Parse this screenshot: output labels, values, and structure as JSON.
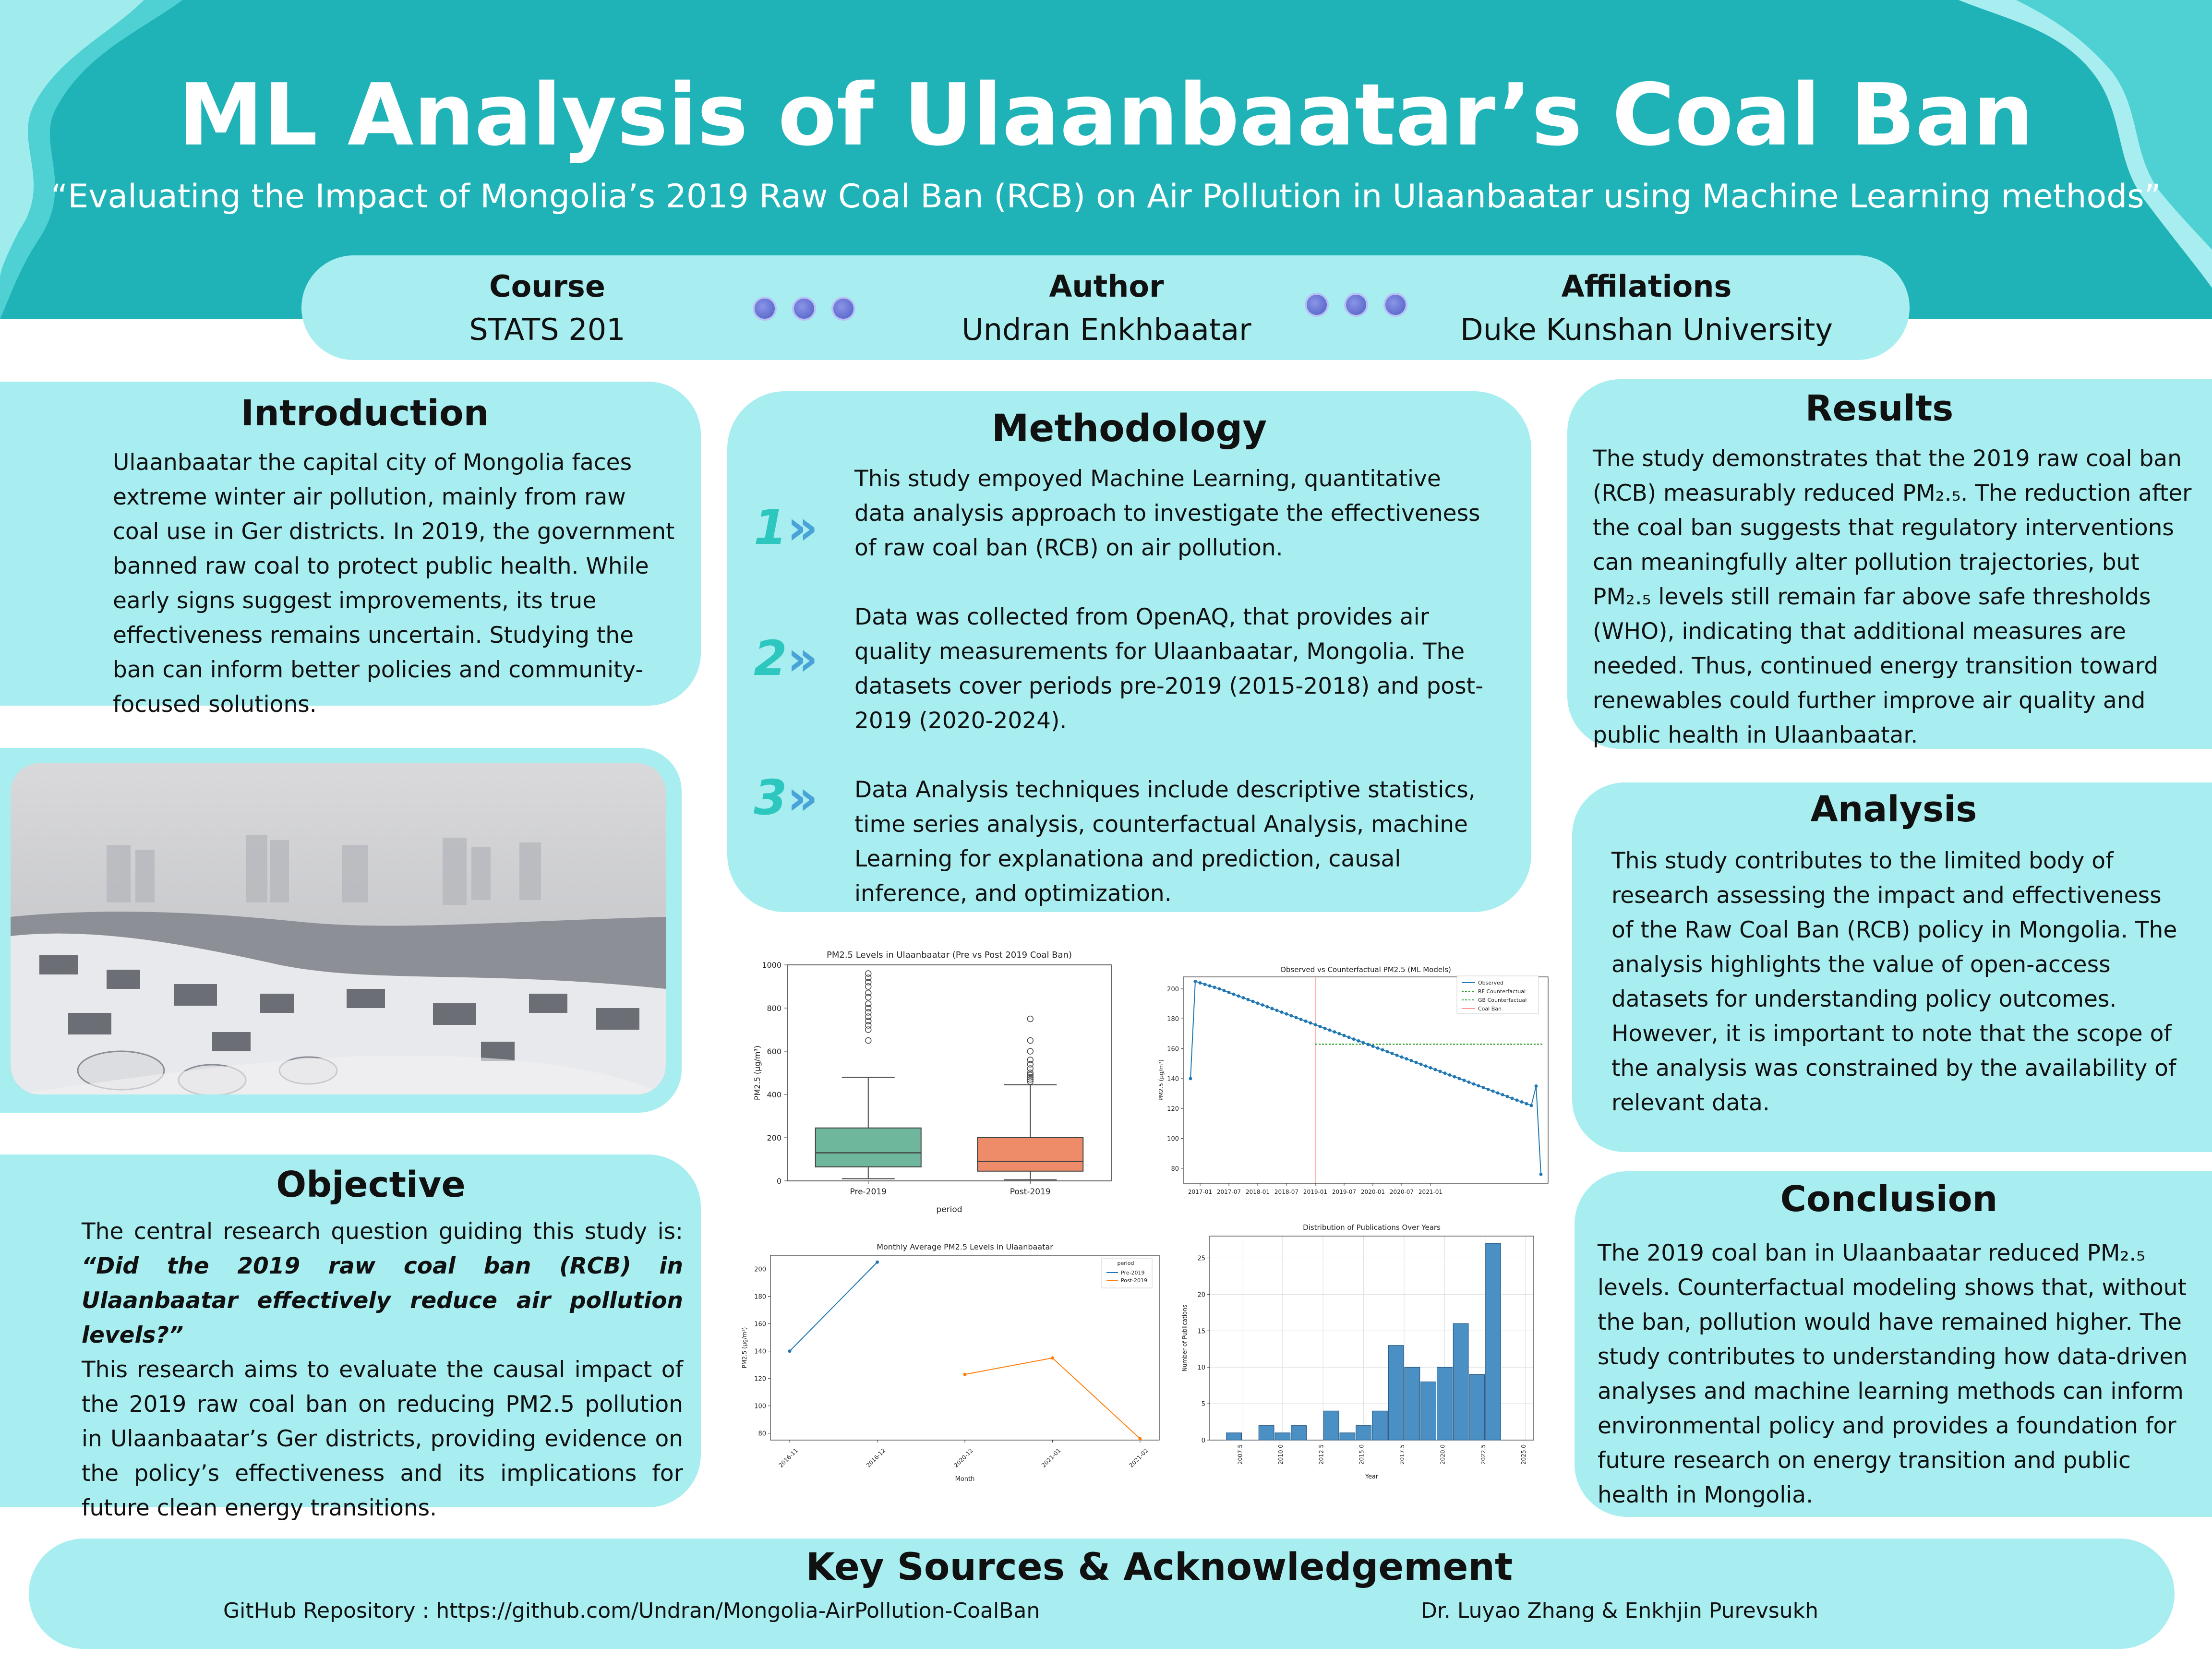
{
  "header": {
    "title": "ML Analysis of Ulaanbaatar’s Coal Ban",
    "subtitle": "“Evaluating the Impact of Mongolia’s 2019 Raw Coal Ban (RCB) on Air Pollution in Ulaanbaatar using Machine Learning methods”"
  },
  "info_bar": {
    "course_label": "Course",
    "course_value": "STATS 201",
    "author_label": "Author",
    "author_value": "Undran Enkhbaatar",
    "affiliation_label": "Affilations",
    "affiliation_value": "Duke Kunshan University"
  },
  "introduction": {
    "heading": "Introduction",
    "text": "Ulaanbaatar the capital city of Mongolia faces extreme winter air pollution, mainly from raw coal use in Ger districts. In 2019, the government banned raw coal to protect public health. While early signs suggest improvements, its true effectiveness remains uncertain. Studying the ban can inform better policies and community-focused solutions."
  },
  "objective": {
    "heading": "Objective",
    "lead": "The central research question guiding this study is: ",
    "question": "“Did the 2019 raw coal ban (RCB) in Ulaanbaatar effectively reduce air pollution levels?”",
    "text": "This research aims to evaluate the causal impact of the 2019 raw coal ban on reducing PM2.5 pollution in Ulaanbaatar’s Ger districts, providing evidence on the policy’s effectiveness and its implications for future clean energy transitions."
  },
  "methodology": {
    "heading": "Methodology",
    "steps": [
      {
        "number": "1",
        "text": "This study empoyed Machine Learning, quantitative data analysis approach to investigate the effectiveness of raw coal ban (RCB) on air pollution."
      },
      {
        "number": "2",
        "text": "Data was collected from OpenAQ, that provides air quality measurements for Ulaanbaatar, Mongolia. The datasets cover periods pre-2019 (2015-2018) and post-2019 (2020-2024)."
      },
      {
        "number": "3",
        "text": "Data Analysis techniques include descriptive statistics, time series analysis, counterfactual Analysis, machine Learning for explanationa and prediction, causal inference, and optimization."
      }
    ]
  },
  "results": {
    "heading": "Results",
    "text": "The study demonstrates that the 2019 raw coal ban (RCB) measurably reduced PM₂.₅. The reduction after the coal ban suggests that regulatory interventions can meaningfully alter pollution trajectories, but PM₂.₅ levels still remain far above safe thresholds (WHO), indicating that additional measures are needed. Thus, continued energy transition toward renewables could further improve air quality and public health in Ulaanbaatar."
  },
  "analysis": {
    "heading": "Analysis",
    "text": "This study contributes to the limited body of research assessing the impact and effectiveness of the Raw Coal Ban (RCB) policy in Mongolia. The analysis highlights the value of open-access datasets for understanding policy outcomes. However, it is important to note that the scope of the analysis was constrained by the availability of relevant data."
  },
  "conclusion": {
    "heading": "Conclusion",
    "text": "The 2019 coal ban in Ulaanbaatar reduced PM₂.₅ levels. Counterfactual modeling shows that, without the ban, pollution would have remained higher. The study contributes to understanding how data-driven analyses and machine learning methods can inform environmental policy and provides a foundation for future research on energy transition and public health in Mongolia."
  },
  "footer": {
    "heading": "Key Sources & Acknowledgement",
    "github": "GitHub Repository : https://github.com/Undran/Mongolia-AirPollution-CoalBan",
    "thanks": "Dr. Luyao Zhang & Enkhjin Purevsukh"
  },
  "colors": {
    "header_bg": "#1fb3b8",
    "panel_bg": "#a8eef0",
    "box_pre": "#6fb79c",
    "box_post": "#ee8c6a",
    "line_blue": "#1f77b4",
    "line_orange": "#ff7f0e",
    "counterfactual_green": "#2ca02c",
    "ban_line": "#ff9896"
  },
  "chart_data": [
    {
      "type": "box",
      "title": "PM2.5 Levels in Ulaanbaatar (Pre vs Post 2019 Coal Ban)",
      "xlabel": "period",
      "ylabel": "PM2.5 (µg/m³)",
      "categories": [
        "Pre-2019",
        "Post-2019"
      ],
      "ylim": [
        0,
        1000
      ],
      "yticks": [
        "0",
        "200",
        "400",
        "600",
        "800",
        "1000"
      ],
      "boxes": [
        {
          "name": "Pre-2019",
          "min": 10,
          "q1": 65,
          "median": 130,
          "q3": 245,
          "max": 480,
          "outliers": [
            650,
            700,
            720,
            740,
            760,
            780,
            800,
            820,
            850,
            870,
            900,
            920,
            940,
            960
          ]
        },
        {
          "name": "Post-2019",
          "min": 5,
          "q1": 45,
          "median": 90,
          "q3": 200,
          "max": 445,
          "outliers": [
            460,
            470,
            480,
            490,
            500,
            520,
            540,
            560,
            600,
            650,
            750
          ]
        }
      ]
    },
    {
      "type": "line",
      "title": "Observed vs Counterfactual PM2.5 (ML Models)",
      "ylabel": "PM2.5 (µg/m³)",
      "xticks": [
        "2017-01",
        "2017-07",
        "2018-01",
        "2018-07",
        "2019-01",
        "2019-07",
        "2020-01",
        "2020-07",
        "2021-01"
      ],
      "ylim": [
        70,
        208
      ],
      "yticks": [
        "80",
        "100",
        "120",
        "140",
        "160",
        "180",
        "200"
      ],
      "legend": [
        "Observed",
        "RF Counterfactual",
        "GB Counterfactual",
        "Coal Ban"
      ],
      "observed": {
        "start": "2016-11",
        "values": [
          140,
          205,
          204,
          203,
          202,
          201,
          200,
          198.8,
          197.6,
          196.4,
          195.2,
          194,
          192.8,
          191.6,
          190.4,
          189.2,
          188,
          186.8,
          185.6,
          184.4,
          183.2,
          182,
          180.8,
          179.6,
          178.4,
          177.2,
          176,
          174.8,
          173.6,
          172.4,
          171.2,
          170,
          168.8,
          167.6,
          166.4,
          165.2,
          164,
          162.8,
          161.6,
          160.4,
          159.2,
          158,
          156.8,
          155.6,
          154.4,
          153.2,
          152,
          150.8,
          149.6,
          148.4,
          147.2,
          146,
          144.8,
          143.6,
          142.4,
          141.2,
          140,
          138.8,
          137.6,
          136.4,
          135.2,
          134,
          132.8,
          131.6,
          130.4,
          129.2,
          128,
          126.8,
          125.6,
          124.4,
          123.2,
          122,
          135,
          76
        ]
      },
      "counterfactual_value": 163,
      "counterfactual_start": "2019-01",
      "ban_date": "2019-01"
    },
    {
      "type": "line",
      "title": "Monthly Average PM2.5 Levels in Ulaanbaatar",
      "xlabel": "Month",
      "ylabel": "PM2.5 (µg/m³)",
      "legend_title": "period",
      "categories": [
        "2016-11",
        "2016-12",
        "2020-12",
        "2021-01",
        "2021-02"
      ],
      "ylim": [
        75,
        210
      ],
      "yticks": [
        "80",
        "100",
        "120",
        "140",
        "160",
        "180",
        "200"
      ],
      "series": [
        {
          "name": "Pre-2019",
          "x": [
            "2016-11",
            "2016-12"
          ],
          "values": [
            140,
            205
          ]
        },
        {
          "name": "Post-2019",
          "x": [
            "2020-12",
            "2021-01",
            "2021-02"
          ],
          "values": [
            123,
            135,
            76
          ]
        }
      ]
    },
    {
      "type": "bar",
      "title": "Distribution of Publications Over Years",
      "xlabel": "Year",
      "ylabel": "Number of Publications",
      "xticks": [
        "2007.5",
        "2010.0",
        "2012.5",
        "2015.0",
        "2017.5",
        "2020.0",
        "2022.5",
        "2025.0"
      ],
      "ylim": [
        0,
        28
      ],
      "yticks": [
        "0",
        "5",
        "10",
        "15",
        "20",
        "25"
      ],
      "categories": [
        "2007",
        "2009",
        "2010",
        "2011",
        "2013",
        "2014",
        "2015",
        "2016",
        "2017",
        "2018",
        "2019",
        "2020",
        "2021",
        "2022",
        "2023",
        "2024"
      ],
      "values": [
        1,
        2,
        1,
        2,
        4,
        1,
        2,
        4,
        13,
        10,
        8,
        10,
        16,
        9,
        27,
        0
      ]
    }
  ]
}
